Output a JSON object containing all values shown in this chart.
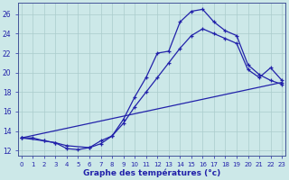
{
  "background_color": "#cce8e8",
  "grid_color": "#aacccc",
  "line_color": "#2222aa",
  "xlabel": "Graphe des températures (°c)",
  "xticks": [
    0,
    1,
    2,
    3,
    4,
    5,
    6,
    7,
    8,
    9,
    10,
    11,
    12,
    13,
    14,
    15,
    16,
    17,
    18,
    19,
    20,
    21,
    22,
    23
  ],
  "yticks": [
    12,
    14,
    16,
    18,
    20,
    22,
    24,
    26
  ],
  "xlim": [
    -0.3,
    23.3
  ],
  "ylim": [
    11.5,
    27.2
  ],
  "curve1_x": [
    0,
    1,
    2,
    3,
    4,
    5,
    6,
    7,
    8,
    9,
    10,
    11,
    12,
    13,
    14,
    15,
    16,
    17,
    18,
    19,
    20,
    21,
    22,
    23
  ],
  "curve1_y": [
    13.3,
    13.3,
    13.0,
    12.8,
    12.2,
    12.1,
    12.3,
    12.7,
    13.5,
    15.2,
    17.5,
    19.5,
    22.0,
    22.2,
    25.2,
    26.3,
    26.5,
    25.2,
    24.3,
    23.8,
    20.8,
    19.8,
    19.2,
    18.8
  ],
  "curve2_x": [
    0,
    2,
    3,
    4,
    6,
    7,
    8,
    9,
    10,
    11,
    12,
    13,
    14,
    15,
    16,
    17,
    18,
    19,
    20,
    21,
    22,
    23
  ],
  "curve2_y": [
    13.3,
    13.0,
    12.8,
    12.5,
    12.3,
    13.0,
    13.5,
    14.8,
    16.5,
    18.0,
    19.5,
    21.0,
    22.5,
    23.8,
    24.5,
    24.0,
    23.5,
    23.0,
    20.3,
    19.5,
    20.5,
    19.2
  ],
  "curve3_x": [
    0,
    23
  ],
  "curve3_y": [
    13.3,
    19.0
  ]
}
